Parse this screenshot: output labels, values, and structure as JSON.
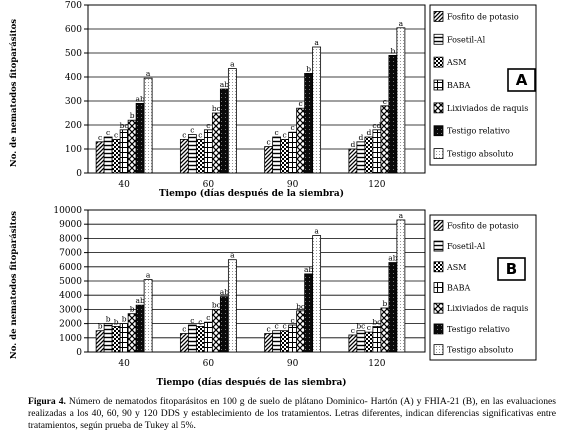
{
  "charts": [
    {
      "panel_label": "A",
      "ylabel": "No. de nematodos fitoparásitos",
      "xlabel": "Tiempo (días después de la siembra)",
      "yticks": [
        0,
        100,
        200,
        300,
        400,
        500,
        600,
        700
      ],
      "legend": [
        "Fosfito de potasio",
        "Fosetil-Al",
        "ASM",
        "BABA",
        "Lixiviados de raquis",
        "Testigo relativo",
        "Testigo absoluto"
      ]
    },
    {
      "panel_label": "B",
      "ylabel": "No. de nematodos fitoparásitos",
      "xlabel": "Tiempo (días después de las siembra)",
      "yticks": [
        0,
        1000,
        2000,
        3000,
        4000,
        5000,
        6000,
        7000,
        8000,
        9000,
        10000
      ],
      "legend": [
        "Fosfito de potasio",
        "Fosetil-Al",
        "ASM",
        "BABA",
        "Lixiviados de raquis",
        "Testigo relativo",
        "Testigo absoluto"
      ]
    }
  ],
  "chart_data": [
    {
      "type": "bar",
      "categories": [
        "40",
        "60",
        "90",
        "120"
      ],
      "ylim": [
        0,
        700
      ],
      "series": [
        {
          "name": "Fosfito de potasio",
          "values": [
            130,
            140,
            110,
            100
          ],
          "letters": [
            "c",
            "c",
            "c",
            "d"
          ]
        },
        {
          "name": "Fosetil-Al",
          "values": [
            150,
            160,
            150,
            130
          ],
          "letters": [
            "c",
            "c",
            "c",
            "d"
          ]
        },
        {
          "name": "ASM",
          "values": [
            140,
            140,
            140,
            150
          ],
          "letters": [
            "c",
            "c",
            "c",
            "d"
          ]
        },
        {
          "name": "BABA",
          "values": [
            180,
            180,
            170,
            180
          ],
          "letters": [
            "bc",
            "c",
            "c",
            "cd"
          ]
        },
        {
          "name": "Lixiviados de raquis",
          "values": [
            220,
            250,
            270,
            280
          ],
          "letters": [
            "b",
            "bc",
            "c",
            "c"
          ]
        },
        {
          "name": "Testigo relativo",
          "values": [
            290,
            350,
            415,
            490
          ],
          "letters": [
            "ab",
            "ab",
            "b",
            "b"
          ]
        },
        {
          "name": "Testigo absoluto",
          "values": [
            395,
            435,
            525,
            605
          ],
          "letters": [
            "a",
            "a",
            "a",
            "a"
          ]
        }
      ]
    },
    {
      "type": "bar",
      "categories": [
        "40",
        "60",
        "90",
        "120"
      ],
      "ylim": [
        0,
        10000
      ],
      "series": [
        {
          "name": "Fosfito de potasio",
          "values": [
            1500,
            1300,
            1300,
            1200
          ],
          "letters": [
            "b",
            "c",
            "c",
            "c"
          ]
        },
        {
          "name": "Fosetil-Al",
          "values": [
            2000,
            1900,
            1500,
            1500
          ],
          "letters": [
            "b",
            "c",
            "c",
            "bc"
          ]
        },
        {
          "name": "ASM",
          "values": [
            1800,
            1800,
            1500,
            1400
          ],
          "letters": [
            "b",
            "c",
            "c",
            "c"
          ]
        },
        {
          "name": "BABA",
          "values": [
            2000,
            2100,
            1900,
            1800
          ],
          "letters": [
            "b",
            "c",
            "c",
            "bc"
          ]
        },
        {
          "name": "Lixiviados de raquis",
          "values": [
            2700,
            3000,
            2900,
            3100
          ],
          "letters": [
            "b",
            "bc",
            "bc",
            "b"
          ]
        },
        {
          "name": "Testigo relativo",
          "values": [
            3300,
            3900,
            5500,
            6300
          ],
          "letters": [
            "ab",
            "ab",
            "ab",
            "ab"
          ]
        },
        {
          "name": "Testigo absoluto",
          "values": [
            5100,
            6500,
            8200,
            9300
          ],
          "letters": [
            "a",
            "a",
            "a",
            "a"
          ]
        }
      ]
    }
  ],
  "caption": {
    "label": "Figura 4.",
    "text": "Número de nematodos fitoparásitos en 100 g de suelo de plátano Dominico- Hartón (A) y FHIA-21 (B), en las evaluaciones realizadas a los 40, 60, 90 y 120 DDS y establecimiento de los tratamientos. Letras diferentes, indican diferencias significativas entre tratamientos, según prueba de Tukey al 5%."
  },
  "colors": {
    "axis": "#000000",
    "grid": "#000000",
    "plot_bg": "#ffffff"
  }
}
